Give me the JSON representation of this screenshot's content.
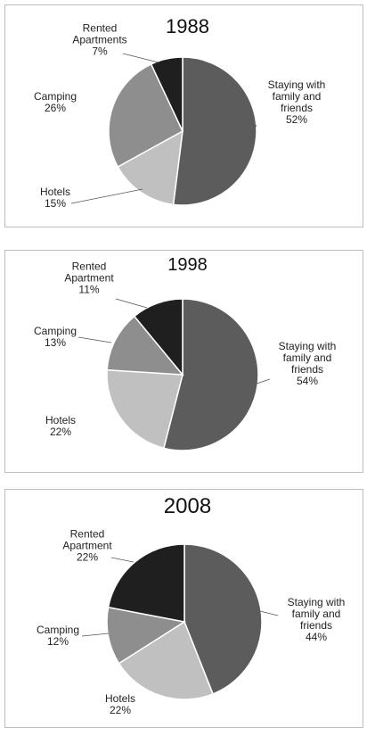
{
  "chart_data": [
    {
      "type": "pie",
      "title": "1988",
      "categories": [
        "Staying with family and friends",
        "Hotels",
        "Camping",
        "Rented Apartments"
      ],
      "values": [
        52,
        15,
        26,
        7
      ],
      "value_labels": [
        "52%",
        "15%",
        "26%",
        "7%"
      ],
      "colors": [
        "#5c5c5c",
        "#c0c0c0",
        "#8e8e8e",
        "#1f1f1f"
      ]
    },
    {
      "type": "pie",
      "title": "1998",
      "categories": [
        "Staying with family and friends",
        "Hotels",
        "Camping",
        "Rented Apartment"
      ],
      "values": [
        54,
        22,
        13,
        11
      ],
      "value_labels": [
        "54%",
        "22%",
        "13%",
        "11%"
      ],
      "colors": [
        "#5c5c5c",
        "#c0c0c0",
        "#8e8e8e",
        "#1f1f1f"
      ]
    },
    {
      "type": "pie",
      "title": "2008",
      "categories": [
        "Staying with family and friends",
        "Hotels",
        "Camping",
        "Rented Apartment"
      ],
      "values": [
        44,
        22,
        12,
        22
      ],
      "value_labels": [
        "44%",
        "22%",
        "12%",
        "22%"
      ],
      "colors": [
        "#5c5c5c",
        "#c0c0c0",
        "#8e8e8e",
        "#1f1f1f"
      ]
    }
  ]
}
